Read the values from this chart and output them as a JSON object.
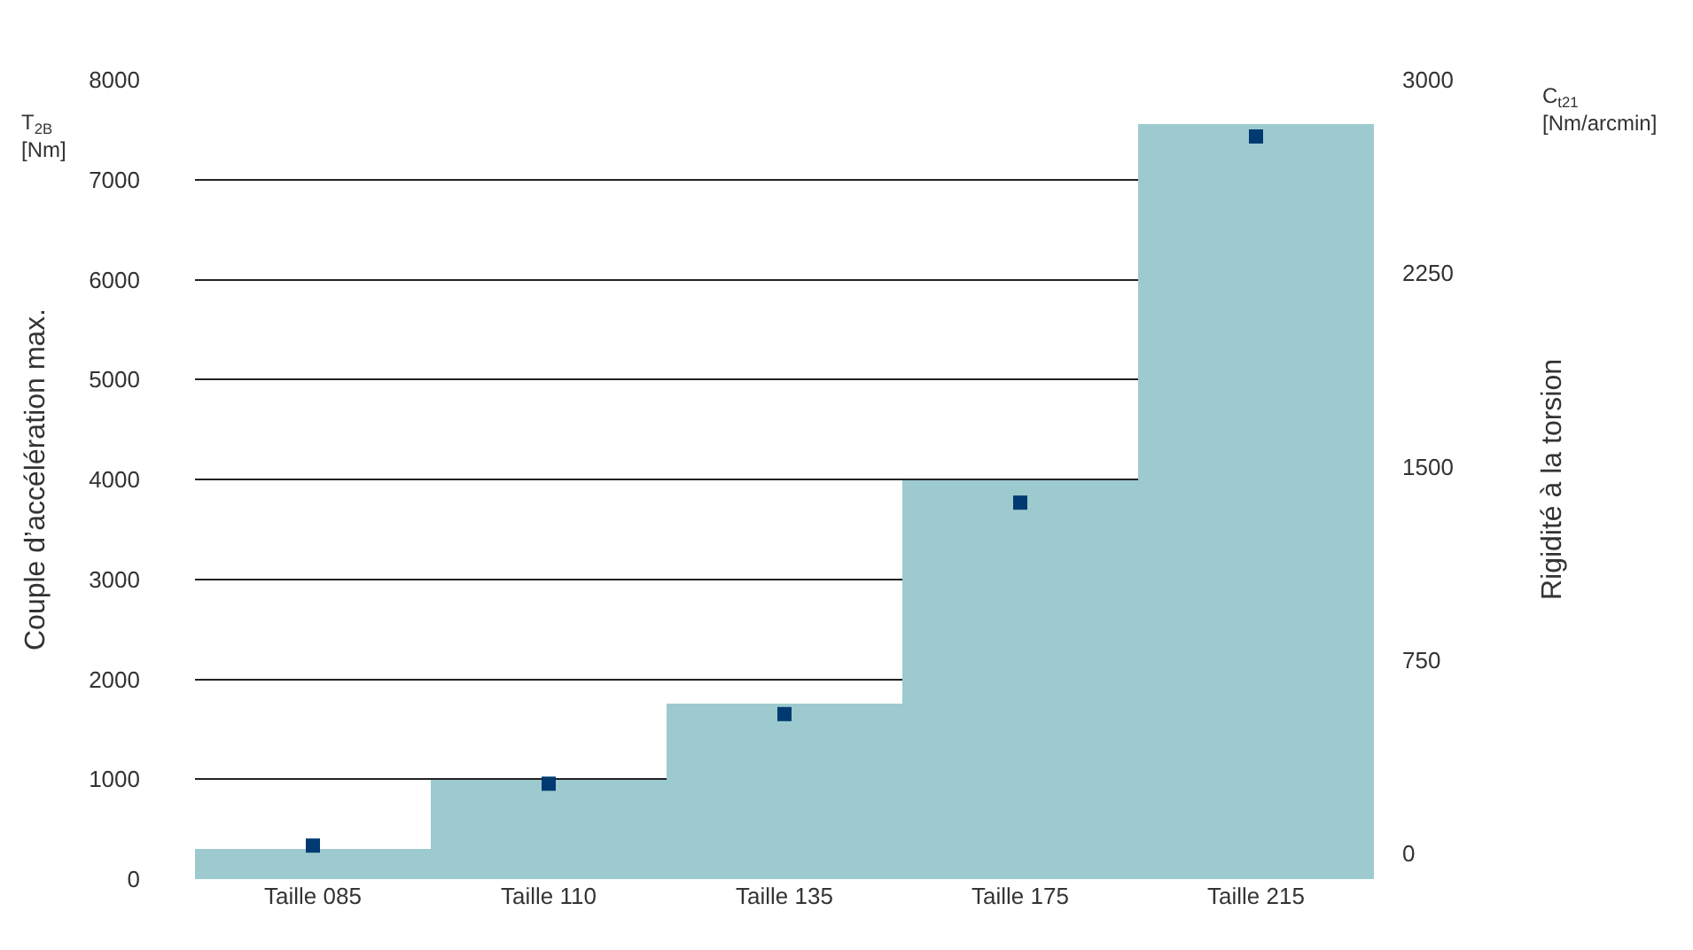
{
  "chart_data": {
    "type": "bar",
    "categories": [
      "Taille 085",
      "Taille 110",
      "Taille 135",
      "Taille 175",
      "Taille 215"
    ],
    "ylabel": "Couple d’accélération max.",
    "y2label": "Rigidité à la torsion",
    "annotations": [
      "T$_{2B}$ [Nm]",
      "C$_{t21}$ [Nm/arcmin]"
    ],
    "series": [
      {
        "color": "#9ccacf",
        "values": [
          300,
          1000,
          1750,
          4000,
          7550
        ]
      },
      {
        "type": "scatter",
        "axis": "y2",
        "color": "#003a70",
        "values": [
          30,
          270,
          540,
          1360,
          2780
        ]
      }
    ],
    "ylim": [
      0,
      8000
    ],
    "yticks": [
      0,
      1000,
      2000,
      3000,
      4000,
      5000,
      6000,
      7000,
      8000
    ],
    "y2lim": [
      -100,
      3000
    ],
    "y2ticks": [
      0,
      750,
      1500,
      2250,
      3000
    ],
    "grid": "y",
    "marker": "square"
  }
}
